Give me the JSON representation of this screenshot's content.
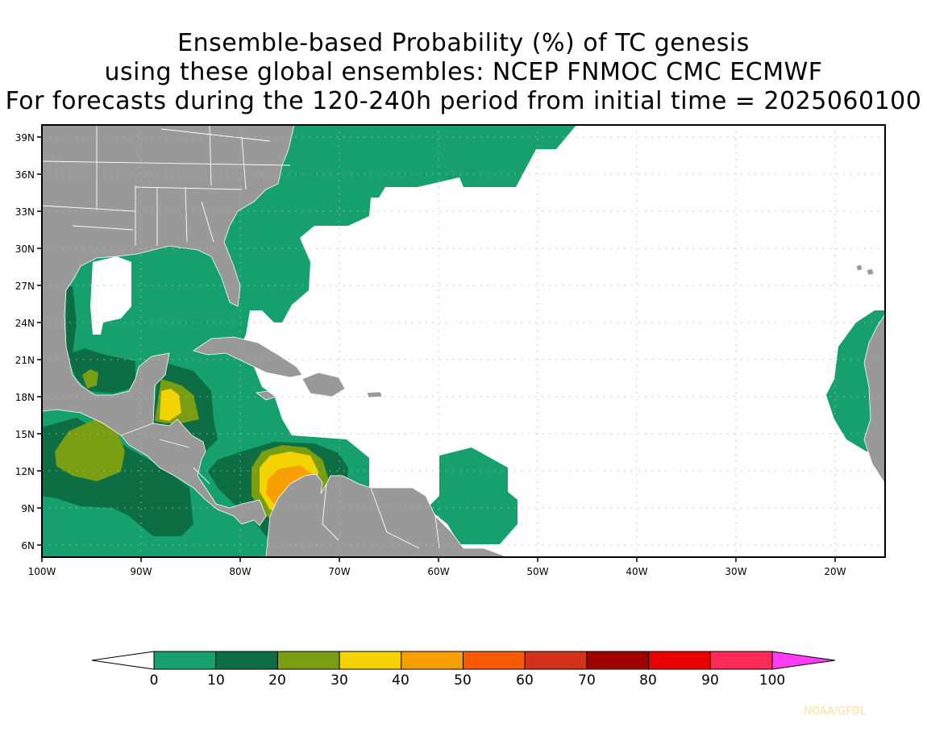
{
  "title": {
    "line1": "Ensemble-based Probability (%) of TC genesis",
    "line2": "using these global ensembles:   NCEP FNMOC CMC ECMWF",
    "line3": "For forecasts during the 120-240h period from initial time = 2025060100"
  },
  "map": {
    "lon_range": [
      -100,
      -15
    ],
    "lat_range": [
      5,
      40
    ],
    "lon_ticks": [
      "100W",
      "90W",
      "80W",
      "70W",
      "60W",
      "50W",
      "40W",
      "30W",
      "20W"
    ],
    "lat_ticks": [
      "39N",
      "36N",
      "33N",
      "30N",
      "27N",
      "24N",
      "21N",
      "18N",
      "15N",
      "12N",
      "9N",
      "6N"
    ],
    "land_color": "#999999",
    "gridlines": "dotted"
  },
  "colorbar": {
    "labels": [
      "0",
      "10",
      "20",
      "30",
      "40",
      "50",
      "60",
      "70",
      "80",
      "90",
      "100"
    ],
    "colors": [
      "#15a06e",
      "#0c6e42",
      "#7a9e12",
      "#f4d400",
      "#f9a000",
      "#f95a00",
      "#d2321a",
      "#9e0000",
      "#e80000",
      "#ff2a57",
      "#ff3cf5"
    ],
    "lower_arrow_color": "#ffffff"
  },
  "credit": "NOAA/GFDL"
}
